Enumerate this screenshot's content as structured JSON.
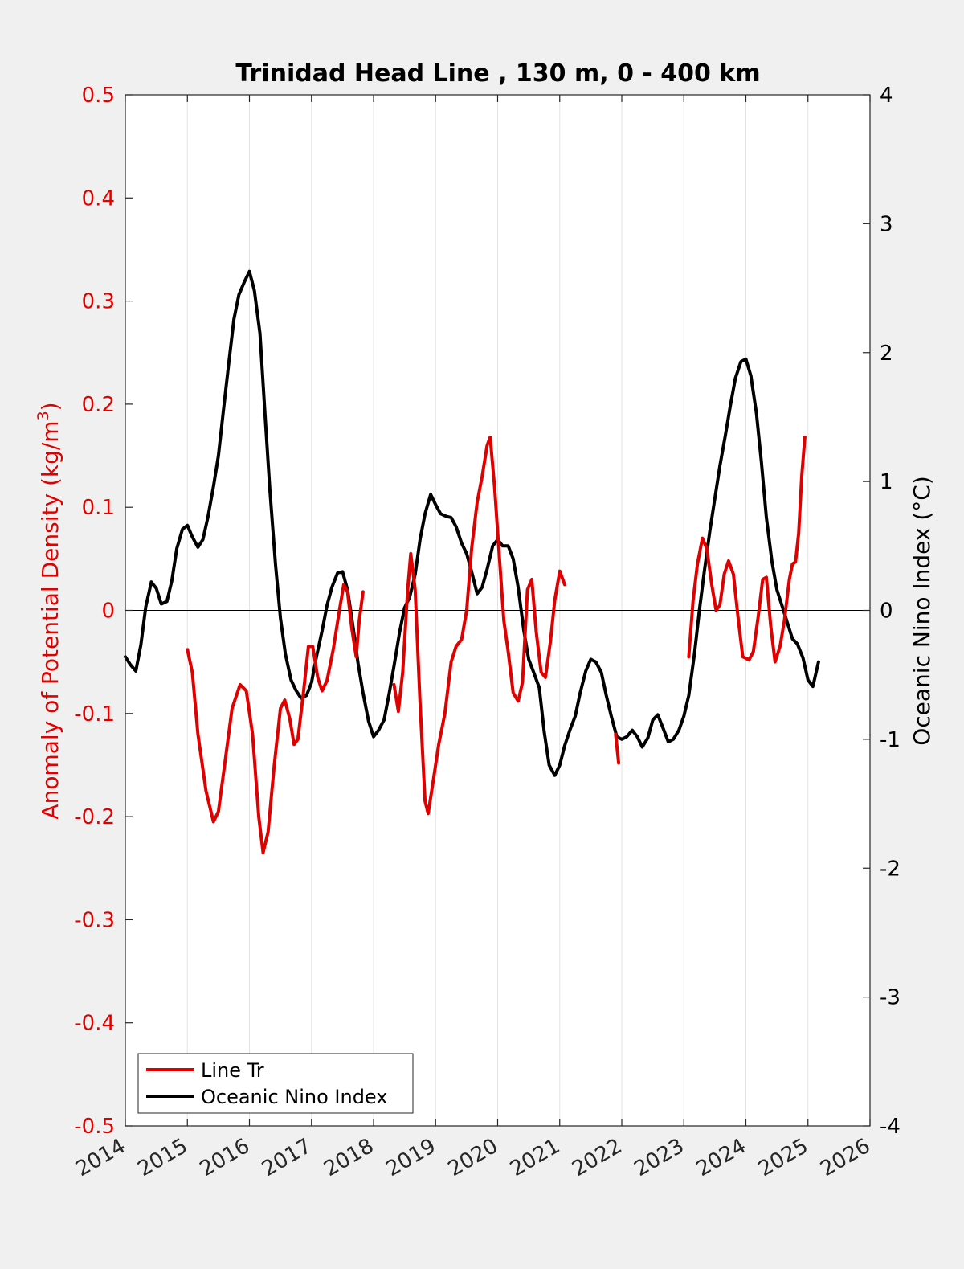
{
  "chart_data": {
    "type": "line",
    "title": "Trinidad Head Line , 130 m, 0 - 400 km",
    "left_axis": {
      "label_main": "Anomaly of Potential Density (kg/m",
      "label_sup": "3",
      "label_end": ")",
      "ylim": [
        -0.5,
        0.5
      ],
      "ticks": [
        -0.5,
        -0.4,
        -0.3,
        -0.2,
        -0.1,
        0,
        0.1,
        0.2,
        0.3,
        0.4,
        0.5
      ],
      "tick_labels": [
        "-0.5",
        "-0.4",
        "-0.3",
        "-0.2",
        "-0.1",
        "0",
        "0.1",
        "0.2",
        "0.3",
        "0.4",
        "0.5"
      ],
      "color": "#e00000"
    },
    "right_axis": {
      "label": "Oceanic Nino Index (°C)",
      "ylim": [
        -4,
        4
      ],
      "ticks": [
        -4,
        -3,
        -2,
        -1,
        0,
        1,
        2,
        3,
        4
      ],
      "tick_labels": [
        "-4",
        "-3",
        "-2",
        "-1",
        "0",
        "1",
        "2",
        "3",
        "4"
      ],
      "color": "#000000"
    },
    "x_axis": {
      "xlim": [
        2014,
        2026
      ],
      "ticks": [
        2014,
        2015,
        2016,
        2017,
        2018,
        2019,
        2020,
        2021,
        2022,
        2023,
        2024,
        2025,
        2026
      ],
      "tick_labels": [
        "2014",
        "2015",
        "2016",
        "2017",
        "2018",
        "2019",
        "2020",
        "2021",
        "2022",
        "2023",
        "2024",
        "2025",
        "2026"
      ],
      "grid": true
    },
    "legend": {
      "placement": "bottom-left",
      "entries": [
        "Line Tr",
        "Oceanic Nino Index"
      ]
    },
    "series": [
      {
        "name": "Line Tr",
        "axis": "left",
        "color": "#e00000",
        "segments": [
          [
            [
              2015.0,
              -0.038
            ],
            [
              2015.08,
              -0.06
            ],
            [
              2015.17,
              -0.12
            ],
            [
              2015.3,
              -0.175
            ],
            [
              2015.42,
              -0.205
            ],
            [
              2015.5,
              -0.195
            ],
            [
              2015.6,
              -0.15
            ],
            [
              2015.72,
              -0.095
            ],
            [
              2015.85,
              -0.072
            ],
            [
              2015.95,
              -0.078
            ],
            [
              2016.05,
              -0.12
            ],
            [
              2016.15,
              -0.2
            ],
            [
              2016.22,
              -0.235
            ],
            [
              2016.3,
              -0.215
            ],
            [
              2016.4,
              -0.15
            ],
            [
              2016.5,
              -0.095
            ],
            [
              2016.57,
              -0.087
            ],
            [
              2016.65,
              -0.105
            ],
            [
              2016.72,
              -0.13
            ],
            [
              2016.78,
              -0.125
            ],
            [
              2016.87,
              -0.08
            ],
            [
              2016.95,
              -0.035
            ],
            [
              2017.02,
              -0.035
            ],
            [
              2017.1,
              -0.065
            ],
            [
              2017.17,
              -0.078
            ],
            [
              2017.25,
              -0.068
            ],
            [
              2017.35,
              -0.038
            ],
            [
              2017.45,
              0.0
            ],
            [
              2017.52,
              0.025
            ],
            [
              2017.58,
              0.018
            ],
            [
              2017.65,
              -0.018
            ],
            [
              2017.72,
              -0.045
            ],
            [
              2017.77,
              -0.01
            ],
            [
              2017.83,
              0.018
            ]
          ],
          [
            [
              2018.33,
              -0.072
            ],
            [
              2018.4,
              -0.098
            ],
            [
              2018.47,
              -0.06
            ],
            [
              2018.55,
              0.02
            ],
            [
              2018.6,
              0.055
            ],
            [
              2018.67,
              0.02
            ],
            [
              2018.75,
              -0.09
            ],
            [
              2018.83,
              -0.185
            ],
            [
              2018.88,
              -0.197
            ],
            [
              2018.95,
              -0.17
            ],
            [
              2019.05,
              -0.13
            ],
            [
              2019.15,
              -0.1
            ],
            [
              2019.25,
              -0.05
            ],
            [
              2019.33,
              -0.035
            ],
            [
              2019.42,
              -0.028
            ],
            [
              2019.5,
              0.0
            ],
            [
              2019.58,
              0.06
            ],
            [
              2019.67,
              0.105
            ],
            [
              2019.75,
              0.13
            ],
            [
              2019.83,
              0.16
            ],
            [
              2019.88,
              0.168
            ],
            [
              2019.95,
              0.12
            ],
            [
              2020.03,
              0.05
            ],
            [
              2020.1,
              -0.01
            ],
            [
              2020.17,
              -0.04
            ],
            [
              2020.25,
              -0.08
            ],
            [
              2020.33,
              -0.088
            ],
            [
              2020.4,
              -0.07
            ],
            [
              2020.48,
              0.02
            ],
            [
              2020.55,
              0.03
            ],
            [
              2020.62,
              -0.02
            ],
            [
              2020.7,
              -0.06
            ],
            [
              2020.77,
              -0.065
            ],
            [
              2020.85,
              -0.03
            ],
            [
              2020.92,
              0.01
            ],
            [
              2021.0,
              0.038
            ],
            [
              2021.05,
              0.03
            ],
            [
              2021.08,
              0.025
            ]
          ],
          [
            [
              2021.9,
              -0.12
            ],
            [
              2021.95,
              -0.148
            ]
          ],
          [
            [
              2023.08,
              -0.045
            ],
            [
              2023.15,
              0.01
            ],
            [
              2023.22,
              0.045
            ],
            [
              2023.3,
              0.07
            ],
            [
              2023.37,
              0.06
            ],
            [
              2023.45,
              0.025
            ],
            [
              2023.52,
              0.0
            ],
            [
              2023.58,
              0.005
            ],
            [
              2023.65,
              0.035
            ],
            [
              2023.72,
              0.048
            ],
            [
              2023.8,
              0.035
            ],
            [
              2023.88,
              -0.01
            ],
            [
              2023.95,
              -0.045
            ],
            [
              2024.05,
              -0.048
            ],
            [
              2024.12,
              -0.04
            ],
            [
              2024.2,
              -0.005
            ],
            [
              2024.27,
              0.03
            ],
            [
              2024.33,
              0.032
            ],
            [
              2024.4,
              -0.015
            ],
            [
              2024.47,
              -0.05
            ],
            [
              2024.55,
              -0.035
            ],
            [
              2024.62,
              -0.01
            ],
            [
              2024.7,
              0.03
            ],
            [
              2024.75,
              0.045
            ],
            [
              2024.8,
              0.047
            ],
            [
              2024.85,
              0.075
            ],
            [
              2024.9,
              0.13
            ],
            [
              2024.95,
              0.168
            ]
          ]
        ]
      },
      {
        "name": "Oceanic Nino Index",
        "axis": "right",
        "color": "#000000",
        "segments": [
          [
            [
              2014.0,
              -0.36
            ],
            [
              2014.08,
              -0.42
            ],
            [
              2014.17,
              -0.47
            ],
            [
              2014.25,
              -0.27
            ],
            [
              2014.33,
              0.03
            ],
            [
              2014.42,
              0.22
            ],
            [
              2014.5,
              0.17
            ],
            [
              2014.58,
              0.05
            ],
            [
              2014.67,
              0.07
            ],
            [
              2014.75,
              0.23
            ],
            [
              2014.83,
              0.48
            ],
            [
              2014.92,
              0.63
            ],
            [
              2015.0,
              0.66
            ],
            [
              2015.08,
              0.57
            ],
            [
              2015.17,
              0.49
            ],
            [
              2015.25,
              0.55
            ],
            [
              2015.33,
              0.72
            ],
            [
              2015.42,
              0.96
            ],
            [
              2015.5,
              1.2
            ],
            [
              2015.58,
              1.55
            ],
            [
              2015.67,
              1.93
            ],
            [
              2015.75,
              2.26
            ],
            [
              2015.83,
              2.45
            ],
            [
              2015.92,
              2.55
            ],
            [
              2016.0,
              2.63
            ],
            [
              2016.08,
              2.48
            ],
            [
              2016.17,
              2.15
            ],
            [
              2016.25,
              1.53
            ],
            [
              2016.33,
              0.93
            ],
            [
              2016.42,
              0.36
            ],
            [
              2016.5,
              -0.06
            ],
            [
              2016.58,
              -0.34
            ],
            [
              2016.67,
              -0.54
            ],
            [
              2016.75,
              -0.62
            ],
            [
              2016.83,
              -0.68
            ],
            [
              2016.92,
              -0.66
            ],
            [
              2017.0,
              -0.56
            ],
            [
              2017.08,
              -0.36
            ],
            [
              2017.17,
              -0.16
            ],
            [
              2017.25,
              0.04
            ],
            [
              2017.33,
              0.18
            ],
            [
              2017.42,
              0.29
            ],
            [
              2017.5,
              0.3
            ],
            [
              2017.58,
              0.16
            ],
            [
              2017.67,
              -0.13
            ],
            [
              2017.75,
              -0.41
            ],
            [
              2017.83,
              -0.64
            ],
            [
              2017.92,
              -0.86
            ],
            [
              2018.0,
              -0.98
            ],
            [
              2018.08,
              -0.93
            ],
            [
              2018.17,
              -0.85
            ],
            [
              2018.25,
              -0.65
            ],
            [
              2018.33,
              -0.43
            ],
            [
              2018.42,
              -0.17
            ],
            [
              2018.5,
              0.02
            ],
            [
              2018.58,
              0.1
            ],
            [
              2018.67,
              0.28
            ],
            [
              2018.75,
              0.55
            ],
            [
              2018.83,
              0.75
            ],
            [
              2018.92,
              0.9
            ],
            [
              2019.0,
              0.82
            ],
            [
              2019.08,
              0.75
            ],
            [
              2019.17,
              0.73
            ],
            [
              2019.25,
              0.72
            ],
            [
              2019.33,
              0.65
            ],
            [
              2019.42,
              0.52
            ],
            [
              2019.5,
              0.44
            ],
            [
              2019.58,
              0.3
            ],
            [
              2019.67,
              0.13
            ],
            [
              2019.75,
              0.18
            ],
            [
              2019.83,
              0.32
            ],
            [
              2019.92,
              0.5
            ],
            [
              2020.0,
              0.55
            ],
            [
              2020.08,
              0.5
            ],
            [
              2020.17,
              0.5
            ],
            [
              2020.25,
              0.4
            ],
            [
              2020.33,
              0.18
            ],
            [
              2020.42,
              -0.15
            ],
            [
              2020.5,
              -0.38
            ],
            [
              2020.58,
              -0.48
            ],
            [
              2020.67,
              -0.6
            ],
            [
              2020.75,
              -0.94
            ],
            [
              2020.83,
              -1.2
            ],
            [
              2020.92,
              -1.28
            ],
            [
              2021.0,
              -1.2
            ],
            [
              2021.08,
              -1.05
            ],
            [
              2021.17,
              -0.92
            ],
            [
              2021.25,
              -0.82
            ],
            [
              2021.33,
              -0.64
            ],
            [
              2021.42,
              -0.47
            ],
            [
              2021.5,
              -0.38
            ],
            [
              2021.58,
              -0.4
            ],
            [
              2021.67,
              -0.48
            ],
            [
              2021.75,
              -0.66
            ],
            [
              2021.83,
              -0.82
            ],
            [
              2021.92,
              -0.98
            ],
            [
              2022.0,
              -1.0
            ],
            [
              2022.08,
              -0.98
            ],
            [
              2022.17,
              -0.93
            ],
            [
              2022.25,
              -0.98
            ],
            [
              2022.33,
              -1.06
            ],
            [
              2022.42,
              -0.99
            ],
            [
              2022.5,
              -0.85
            ],
            [
              2022.58,
              -0.81
            ],
            [
              2022.67,
              -0.92
            ],
            [
              2022.75,
              -1.02
            ],
            [
              2022.83,
              -1.0
            ],
            [
              2022.92,
              -0.93
            ],
            [
              2023.0,
              -0.82
            ],
            [
              2023.08,
              -0.66
            ],
            [
              2023.17,
              -0.34
            ],
            [
              2023.25,
              0.0
            ],
            [
              2023.33,
              0.3
            ],
            [
              2023.42,
              0.62
            ],
            [
              2023.5,
              0.87
            ],
            [
              2023.58,
              1.12
            ],
            [
              2023.67,
              1.36
            ],
            [
              2023.75,
              1.59
            ],
            [
              2023.83,
              1.8
            ],
            [
              2023.92,
              1.93
            ],
            [
              2024.0,
              1.95
            ],
            [
              2024.08,
              1.82
            ],
            [
              2024.17,
              1.53
            ],
            [
              2024.25,
              1.15
            ],
            [
              2024.33,
              0.72
            ],
            [
              2024.42,
              0.38
            ],
            [
              2024.5,
              0.16
            ],
            [
              2024.58,
              0.04
            ],
            [
              2024.67,
              -0.1
            ],
            [
              2024.75,
              -0.22
            ],
            [
              2024.83,
              -0.26
            ],
            [
              2024.92,
              -0.37
            ],
            [
              2025.0,
              -0.54
            ],
            [
              2025.08,
              -0.59
            ],
            [
              2025.17,
              -0.4
            ]
          ]
        ]
      }
    ]
  }
}
